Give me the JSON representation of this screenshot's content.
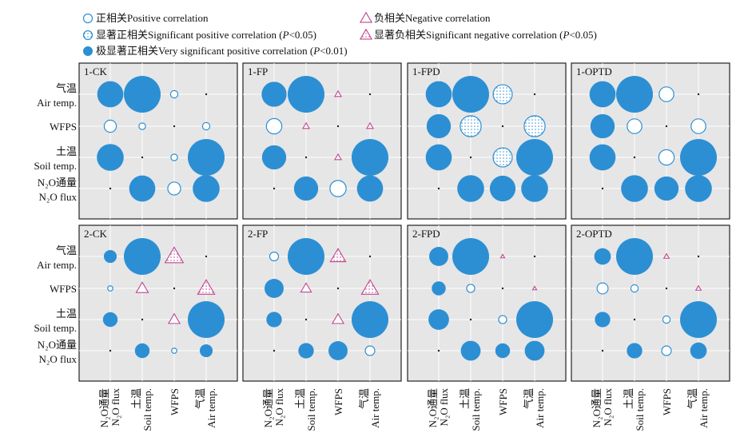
{
  "colors": {
    "positive": "#2c8fd4",
    "negative": "#c0448f",
    "panel_bg": "#e6e6e6",
    "grid": "#ffffff",
    "border": "#222222"
  },
  "legend": {
    "items": [
      {
        "kind": "positive",
        "zh": "正相关",
        "en": "Positive correlation"
      },
      {
        "kind": "negative",
        "zh": "负相关",
        "en": "Negative correlation"
      },
      {
        "kind": "sig_positive",
        "zh": "显著正相关",
        "en": "Significant positive correlation (",
        "p": "P",
        "tail": "<0.05)"
      },
      {
        "kind": "sig_negative",
        "zh": "显著负相关",
        "en": "Significant negative correlation (",
        "p": "P",
        "tail": "<0.05)"
      },
      {
        "kind": "very_sig_positive",
        "zh": "极显著正相关",
        "en": "Very significant positive correlation (",
        "p": "P",
        "tail": "<0.01)"
      }
    ]
  },
  "axes": {
    "rows": [
      {
        "zh": "气温",
        "en": "Air temp."
      },
      {
        "zh": "",
        "en": "WFPS"
      },
      {
        "zh": "土温",
        "en": "Soil temp."
      },
      {
        "zh": "N₂O通量",
        "en": "N₂O flux"
      }
    ],
    "cols": [
      {
        "zh": "N₂O通量",
        "en": "N₂O flux"
      },
      {
        "zh": "土温",
        "en": "Soil temp."
      },
      {
        "zh": "",
        "en": "WFPS"
      },
      {
        "zh": "气温",
        "en": "Air temp."
      }
    ]
  },
  "chart_data": {
    "type": "correlation bubble matrix",
    "row_variables": [
      "Air temp.",
      "WFPS",
      "Soil temp.",
      "N2O flux"
    ],
    "column_variables": [
      "N2O flux",
      "Soil temp.",
      "WFPS",
      "Air temp."
    ],
    "cell_encoding": "circle radius = |r| (1.0 = full cell); kind: pos = positive, sigpos = significant positive, vsig = very significant positive, neg = negative, signeg = significant negative",
    "panels": [
      {
        "title": "1-CK",
        "cells": [
          [
            {
              "r": 0.71,
              "kind": "vsig"
            },
            {
              "r": 1.0,
              "kind": "vsig"
            },
            {
              "r": 0.2,
              "kind": "pos"
            },
            {
              "r": 0.03,
              "kind": "pos"
            }
          ],
          [
            {
              "r": 0.33,
              "kind": "pos"
            },
            {
              "r": 0.18,
              "kind": "pos"
            },
            {
              "r": 0.03,
              "kind": "pos"
            },
            {
              "r": 0.2,
              "kind": "pos"
            }
          ],
          [
            {
              "r": 0.73,
              "kind": "vsig"
            },
            {
              "r": 0.03,
              "kind": "pos"
            },
            {
              "r": 0.18,
              "kind": "pos"
            },
            {
              "r": 1.0,
              "kind": "vsig"
            }
          ],
          [
            {
              "r": 0.03,
              "kind": "pos"
            },
            {
              "r": 0.71,
              "kind": "vsig"
            },
            {
              "r": 0.35,
              "kind": "pos"
            },
            {
              "r": 0.73,
              "kind": "vsig"
            }
          ]
        ]
      },
      {
        "title": "1-FP",
        "cells": [
          [
            {
              "r": 0.68,
              "kind": "vsig"
            },
            {
              "r": 1.0,
              "kind": "vsig"
            },
            {
              "r": 0.16,
              "kind": "neg"
            },
            {
              "r": 0.03,
              "kind": "pos"
            }
          ],
          [
            {
              "r": 0.42,
              "kind": "pos"
            },
            {
              "r": 0.16,
              "kind": "neg"
            },
            {
              "r": 0.03,
              "kind": "pos"
            },
            {
              "r": 0.16,
              "kind": "neg"
            }
          ],
          [
            {
              "r": 0.66,
              "kind": "vsig"
            },
            {
              "r": 0.03,
              "kind": "pos"
            },
            {
              "r": 0.16,
              "kind": "neg"
            },
            {
              "r": 1.0,
              "kind": "vsig"
            }
          ],
          [
            {
              "r": 0.03,
              "kind": "pos"
            },
            {
              "r": 0.66,
              "kind": "vsig"
            },
            {
              "r": 0.44,
              "kind": "pos"
            },
            {
              "r": 0.71,
              "kind": "vsig"
            }
          ]
        ]
      },
      {
        "title": "1-FPD",
        "cells": [
          [
            {
              "r": 0.71,
              "kind": "vsig"
            },
            {
              "r": 1.0,
              "kind": "vsig"
            },
            {
              "r": 0.52,
              "kind": "sigpos"
            },
            {
              "r": 0.03,
              "kind": "pos"
            }
          ],
          [
            {
              "r": 0.66,
              "kind": "vsig"
            },
            {
              "r": 0.57,
              "kind": "sigpos"
            },
            {
              "r": 0.03,
              "kind": "pos"
            },
            {
              "r": 0.57,
              "kind": "sigpos"
            }
          ],
          [
            {
              "r": 0.71,
              "kind": "vsig"
            },
            {
              "r": 0.03,
              "kind": "pos"
            },
            {
              "r": 0.52,
              "kind": "sigpos"
            },
            {
              "r": 1.0,
              "kind": "vsig"
            }
          ],
          [
            {
              "r": 0.03,
              "kind": "pos"
            },
            {
              "r": 0.73,
              "kind": "vsig"
            },
            {
              "r": 0.7,
              "kind": "vsig"
            },
            {
              "r": 0.73,
              "kind": "vsig"
            }
          ]
        ]
      },
      {
        "title": "1-OPTD",
        "cells": [
          [
            {
              "r": 0.71,
              "kind": "vsig"
            },
            {
              "r": 1.0,
              "kind": "vsig"
            },
            {
              "r": 0.4,
              "kind": "pos"
            },
            {
              "r": 0.03,
              "kind": "pos"
            }
          ],
          [
            {
              "r": 0.66,
              "kind": "vsig"
            },
            {
              "r": 0.4,
              "kind": "pos"
            },
            {
              "r": 0.03,
              "kind": "pos"
            },
            {
              "r": 0.4,
              "kind": "pos"
            }
          ],
          [
            {
              "r": 0.71,
              "kind": "vsig"
            },
            {
              "r": 0.03,
              "kind": "pos"
            },
            {
              "r": 0.42,
              "kind": "pos"
            },
            {
              "r": 1.0,
              "kind": "vsig"
            }
          ],
          [
            {
              "r": 0.03,
              "kind": "pos"
            },
            {
              "r": 0.73,
              "kind": "vsig"
            },
            {
              "r": 0.66,
              "kind": "vsig"
            },
            {
              "r": 0.73,
              "kind": "vsig"
            }
          ]
        ]
      },
      {
        "title": "2-CK",
        "cells": [
          [
            {
              "r": 0.35,
              "kind": "vsig"
            },
            {
              "r": 1.0,
              "kind": "vsig"
            },
            {
              "r": 0.45,
              "kind": "signeg"
            },
            {
              "r": 0.03,
              "kind": "pos"
            }
          ],
          [
            {
              "r": 0.14,
              "kind": "pos"
            },
            {
              "r": 0.3,
              "kind": "neg"
            },
            {
              "r": 0.03,
              "kind": "pos"
            },
            {
              "r": 0.42,
              "kind": "signeg"
            }
          ],
          [
            {
              "r": 0.4,
              "kind": "vsig"
            },
            {
              "r": 0.03,
              "kind": "pos"
            },
            {
              "r": 0.28,
              "kind": "neg"
            },
            {
              "r": 1.0,
              "kind": "vsig"
            }
          ],
          [
            {
              "r": 0.03,
              "kind": "pos"
            },
            {
              "r": 0.4,
              "kind": "vsig"
            },
            {
              "r": 0.14,
              "kind": "pos"
            },
            {
              "r": 0.35,
              "kind": "vsig"
            }
          ]
        ]
      },
      {
        "title": "2-FP",
        "cells": [
          [
            {
              "r": 0.24,
              "kind": "pos"
            },
            {
              "r": 1.0,
              "kind": "vsig"
            },
            {
              "r": 0.38,
              "kind": "signeg"
            },
            {
              "r": 0.03,
              "kind": "pos"
            }
          ],
          [
            {
              "r": 0.52,
              "kind": "vsig"
            },
            {
              "r": 0.26,
              "kind": "neg"
            },
            {
              "r": 0.03,
              "kind": "pos"
            },
            {
              "r": 0.42,
              "kind": "signeg"
            }
          ],
          [
            {
              "r": 0.42,
              "kind": "vsig"
            },
            {
              "r": 0.03,
              "kind": "pos"
            },
            {
              "r": 0.28,
              "kind": "neg"
            },
            {
              "r": 1.0,
              "kind": "vsig"
            }
          ],
          [
            {
              "r": 0.03,
              "kind": "pos"
            },
            {
              "r": 0.42,
              "kind": "vsig"
            },
            {
              "r": 0.52,
              "kind": "vsig"
            },
            {
              "r": 0.26,
              "kind": "pos"
            }
          ]
        ]
      },
      {
        "title": "2-FPD",
        "cells": [
          [
            {
              "r": 0.52,
              "kind": "vsig"
            },
            {
              "r": 1.0,
              "kind": "vsig"
            },
            {
              "r": 0.1,
              "kind": "neg"
            },
            {
              "r": 0.03,
              "kind": "pos"
            }
          ],
          [
            {
              "r": 0.38,
              "kind": "vsig"
            },
            {
              "r": 0.22,
              "kind": "pos"
            },
            {
              "r": 0.03,
              "kind": "pos"
            },
            {
              "r": 0.1,
              "kind": "neg"
            }
          ],
          [
            {
              "r": 0.56,
              "kind": "vsig"
            },
            {
              "r": 0.03,
              "kind": "pos"
            },
            {
              "r": 0.22,
              "kind": "pos"
            },
            {
              "r": 1.0,
              "kind": "vsig"
            }
          ],
          [
            {
              "r": 0.03,
              "kind": "pos"
            },
            {
              "r": 0.54,
              "kind": "vsig"
            },
            {
              "r": 0.4,
              "kind": "vsig"
            },
            {
              "r": 0.54,
              "kind": "vsig"
            }
          ]
        ]
      },
      {
        "title": "2-OPTD",
        "cells": [
          [
            {
              "r": 0.45,
              "kind": "vsig"
            },
            {
              "r": 1.0,
              "kind": "vsig"
            },
            {
              "r": 0.13,
              "kind": "neg"
            },
            {
              "r": 0.03,
              "kind": "pos"
            }
          ],
          [
            {
              "r": 0.3,
              "kind": "pos"
            },
            {
              "r": 0.2,
              "kind": "pos"
            },
            {
              "r": 0.03,
              "kind": "pos"
            },
            {
              "r": 0.13,
              "kind": "neg"
            }
          ],
          [
            {
              "r": 0.42,
              "kind": "vsig"
            },
            {
              "r": 0.03,
              "kind": "pos"
            },
            {
              "r": 0.2,
              "kind": "pos"
            },
            {
              "r": 1.0,
              "kind": "vsig"
            }
          ],
          [
            {
              "r": 0.03,
              "kind": "pos"
            },
            {
              "r": 0.42,
              "kind": "vsig"
            },
            {
              "r": 0.26,
              "kind": "pos"
            },
            {
              "r": 0.45,
              "kind": "vsig"
            }
          ]
        ]
      }
    ]
  }
}
